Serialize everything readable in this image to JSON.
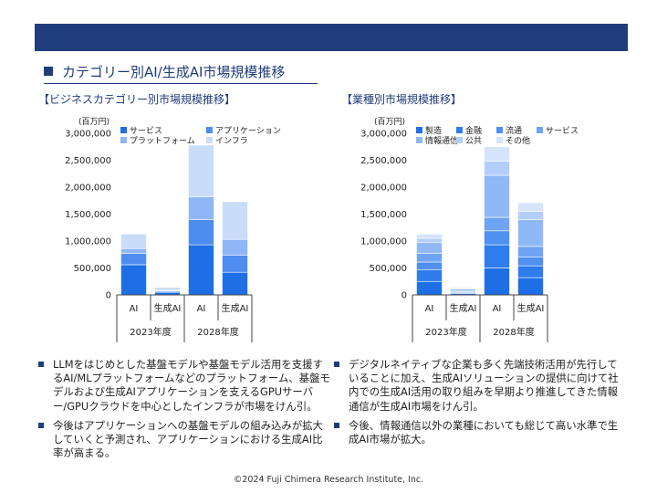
{
  "page": {
    "title": "カテゴリー別AI/生成AI市場規模推移",
    "copyright": "©2024 Fuji Chimera Research Institute, Inc."
  },
  "colors": {
    "header_bar": "#1f3d7a",
    "accent": "#1f3d7a"
  },
  "chart_data": [
    {
      "type": "bar",
      "stacked": true,
      "title": "【ビジネスカテゴリー別市場規模推移】",
      "unit_label": "(百万円)",
      "ylim": [
        0,
        3000000
      ],
      "yticks": [
        0,
        500000,
        1000000,
        1500000,
        2000000,
        2500000,
        3000000
      ],
      "ytick_labels": [
        "0",
        "500,000",
        "1,000,000",
        "1,500,000",
        "2,000,000",
        "2,500,000",
        "3,000,000"
      ],
      "categories": [
        "AI",
        "生成AI",
        "AI",
        "生成AI"
      ],
      "groups": [
        {
          "label": "2023年度",
          "span": [
            0,
            1
          ]
        },
        {
          "label": "2028年度",
          "span": [
            2,
            3
          ]
        }
      ],
      "legend_position": "top",
      "series": [
        {
          "name": "サービス",
          "color": "#1e6fe6",
          "values": [
            560000,
            50000,
            930000,
            420000
          ]
        },
        {
          "name": "アプリケーション",
          "color": "#4d8df0",
          "values": [
            210000,
            20000,
            470000,
            320000
          ]
        },
        {
          "name": "プラットフォーム",
          "color": "#8fb6f6",
          "values": [
            90000,
            15000,
            420000,
            290000
          ]
        },
        {
          "name": "インフラ",
          "color": "#c9dcfa",
          "values": [
            270000,
            55000,
            960000,
            700000
          ]
        }
      ]
    },
    {
      "type": "bar",
      "stacked": true,
      "title": "【業種別市場規模推移】",
      "unit_label": "(百万円)",
      "ylim": [
        0,
        3000000
      ],
      "yticks": [
        0,
        500000,
        1000000,
        1500000,
        2000000,
        2500000,
        3000000
      ],
      "ytick_labels": [
        "0",
        "500,000",
        "1,000,000",
        "1,500,000",
        "2,000,000",
        "2,500,000",
        "3,000,000"
      ],
      "categories": [
        "AI",
        "生成AI",
        "AI",
        "生成AI"
      ],
      "groups": [
        {
          "label": "2023年度",
          "span": [
            0,
            1
          ]
        },
        {
          "label": "2028年度",
          "span": [
            2,
            3
          ]
        }
      ],
      "legend_position": "top",
      "series": [
        {
          "name": "製造",
          "color": "#1e6fe6",
          "values": [
            250000,
            25000,
            500000,
            320000
          ]
        },
        {
          "name": "金融",
          "color": "#2f7cec",
          "values": [
            220000,
            20000,
            430000,
            220000
          ]
        },
        {
          "name": "流通",
          "color": "#4f90f0",
          "values": [
            140000,
            15000,
            260000,
            160000
          ]
        },
        {
          "name": "サービス",
          "color": "#6ea4f3",
          "values": [
            160000,
            20000,
            250000,
            200000
          ]
        },
        {
          "name": "情報通信",
          "color": "#8fb8f6",
          "values": [
            200000,
            30000,
            780000,
            500000
          ]
        },
        {
          "name": "公共",
          "color": "#b3cff9",
          "values": [
            80000,
            10000,
            260000,
            150000
          ]
        },
        {
          "name": "その他",
          "color": "#d5e4fb",
          "values": [
            80000,
            20000,
            270000,
            160000
          ]
        }
      ]
    }
  ],
  "bullets_left": [
    "LLMをはじめとした基盤モデルや基盤モデル活用を支援するAI/MLプラットフォームなどのプラットフォーム、基盤モデルおよび生成AIアプリケーションを支えるGPUサーバー/GPUクラウドを中心としたインフラが市場をけん引。",
    "今後はアプリケーションへの基盤モデルの組み込みが拡大していくと予測され、アプリケーションにおける生成AI比率が高まる。"
  ],
  "bullets_right": [
    "デジタルネイティブな企業も多く先端技術活用が先行していることに加え、生成AIソリューションの提供に向けて社内での生成AI活用の取り組みを早期より推進してきた情報通信が生成AI市場をけん引。",
    "今後、情報通信以外の業種においても総じて高い水準で生成AI市場が拡大。"
  ]
}
